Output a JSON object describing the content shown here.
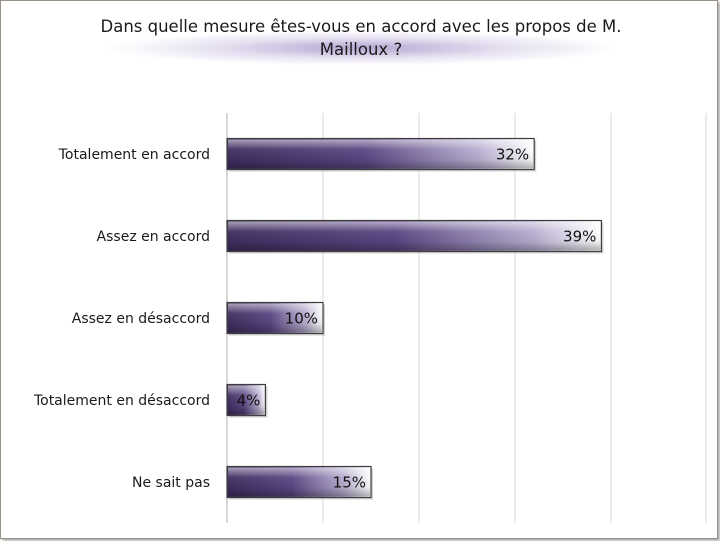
{
  "chart_data": {
    "type": "bar",
    "orientation": "horizontal",
    "title": "Dans quelle mesure êtes-vous en accord avec les propos de M. Mailloux ?",
    "categories": [
      "Totalement en accord",
      "Assez en accord",
      "Assez en désaccord",
      "Totalement en désaccord",
      "Ne sait pas"
    ],
    "values": [
      32,
      39,
      10,
      4,
      15
    ],
    "value_labels": [
      "32%",
      "39%",
      "10%",
      "4%",
      "15%"
    ],
    "xlim": [
      0,
      50
    ],
    "grid": true,
    "legend": "none",
    "colors": {
      "bar_dark": "#3f2d5f",
      "bar_light": "#ffffff",
      "bar_border": "#3d3d3d",
      "grid": "#d9d9d9"
    }
  }
}
